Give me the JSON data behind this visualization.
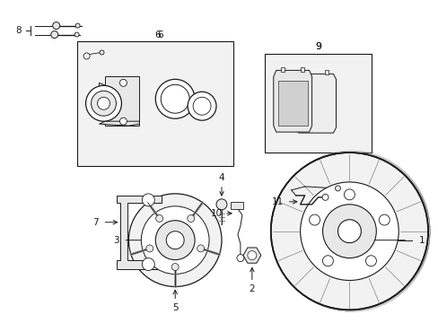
{
  "background_color": "#ffffff",
  "line_color": "#1a1a1a",
  "gray_fill": "#e8e8e8",
  "light_fill": "#f2f2f2",
  "fig_width": 4.89,
  "fig_height": 3.6,
  "dpi": 100
}
